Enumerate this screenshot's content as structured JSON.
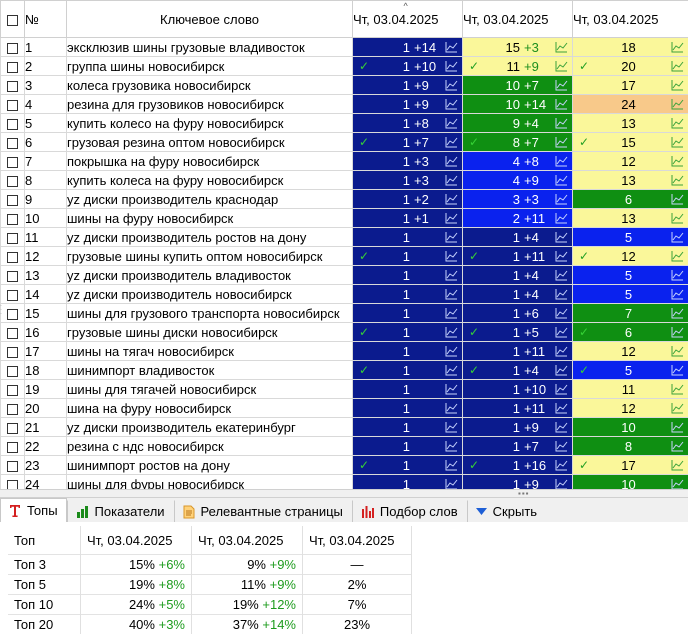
{
  "header": {
    "number_label": "№",
    "keyword_label": "Ключевое слово",
    "dates": [
      "Чт, 03.04.2025",
      "Чт, 03.04.2025",
      "Чт, 03.04.2025"
    ]
  },
  "colors": {
    "dark_blue": "#0b1b8e",
    "blue": "#0a22ee",
    "green": "#0f8f12",
    "yellow": "#faf79a",
    "orange": "#f8c98a",
    "check_on_dark": "#36d236",
    "check_on_yellow": "#24a024"
  },
  "rows": [
    {
      "n": "1",
      "kw": "эксклюзив шины грузовые владивосток",
      "c": [
        {
          "v": "1",
          "d": "+14",
          "bg": "dark_blue",
          "ok": false
        },
        {
          "v": "15",
          "d": "+3",
          "bg": "yellow",
          "ok": false
        },
        {
          "v": "18",
          "d": "",
          "bg": "yellow",
          "ok": false
        }
      ]
    },
    {
      "n": "2",
      "kw": "группа шины новосибирск",
      "c": [
        {
          "v": "1",
          "d": "+10",
          "bg": "dark_blue",
          "ok": true
        },
        {
          "v": "11",
          "d": "+9",
          "bg": "yellow",
          "ok": true
        },
        {
          "v": "20",
          "d": "",
          "bg": "yellow",
          "ok": true
        }
      ]
    },
    {
      "n": "3",
      "kw": "колеса грузовика новосибирск",
      "c": [
        {
          "v": "1",
          "d": "+9",
          "bg": "dark_blue",
          "ok": false
        },
        {
          "v": "10",
          "d": "+7",
          "bg": "green",
          "ok": false
        },
        {
          "v": "17",
          "d": "",
          "bg": "yellow",
          "ok": false
        }
      ]
    },
    {
      "n": "4",
      "kw": "резина для грузовиков новосибирск",
      "c": [
        {
          "v": "1",
          "d": "+9",
          "bg": "dark_blue",
          "ok": false
        },
        {
          "v": "10",
          "d": "+14",
          "bg": "green",
          "ok": false
        },
        {
          "v": "24",
          "d": "",
          "bg": "orange",
          "ok": false
        }
      ]
    },
    {
      "n": "5",
      "kw": "купить колесо на фуру новосибирск",
      "c": [
        {
          "v": "1",
          "d": "+8",
          "bg": "dark_blue",
          "ok": false
        },
        {
          "v": "9",
          "d": "+4",
          "bg": "green",
          "ok": false
        },
        {
          "v": "13",
          "d": "",
          "bg": "yellow",
          "ok": false
        }
      ]
    },
    {
      "n": "6",
      "kw": "грузовая резина оптом новосибирск",
      "c": [
        {
          "v": "1",
          "d": "+7",
          "bg": "dark_blue",
          "ok": true
        },
        {
          "v": "8",
          "d": "+7",
          "bg": "green",
          "ok": true
        },
        {
          "v": "15",
          "d": "",
          "bg": "yellow",
          "ok": true
        }
      ]
    },
    {
      "n": "7",
      "kw": "покрышка на фуру новосибирск",
      "c": [
        {
          "v": "1",
          "d": "+3",
          "bg": "dark_blue",
          "ok": false
        },
        {
          "v": "4",
          "d": "+8",
          "bg": "blue",
          "ok": false
        },
        {
          "v": "12",
          "d": "",
          "bg": "yellow",
          "ok": false
        }
      ]
    },
    {
      "n": "8",
      "kw": "купить колеса на фуру новосибирск",
      "c": [
        {
          "v": "1",
          "d": "+3",
          "bg": "dark_blue",
          "ok": false
        },
        {
          "v": "4",
          "d": "+9",
          "bg": "blue",
          "ok": false
        },
        {
          "v": "13",
          "d": "",
          "bg": "yellow",
          "ok": false
        }
      ]
    },
    {
      "n": "9",
      "kw": "yz диски производитель краснодар",
      "c": [
        {
          "v": "1",
          "d": "+2",
          "bg": "dark_blue",
          "ok": false
        },
        {
          "v": "3",
          "d": "+3",
          "bg": "blue",
          "ok": false
        },
        {
          "v": "6",
          "d": "",
          "bg": "green",
          "ok": false
        }
      ]
    },
    {
      "n": "10",
      "kw": "шины на фуру новосибирск",
      "c": [
        {
          "v": "1",
          "d": "+1",
          "bg": "dark_blue",
          "ok": false
        },
        {
          "v": "2",
          "d": "+11",
          "bg": "blue",
          "ok": false
        },
        {
          "v": "13",
          "d": "",
          "bg": "yellow",
          "ok": false
        }
      ]
    },
    {
      "n": "11",
      "kw": "yz диски производитель ростов на дону",
      "c": [
        {
          "v": "1",
          "d": "",
          "bg": "dark_blue",
          "ok": false
        },
        {
          "v": "1",
          "d": "+4",
          "bg": "dark_blue",
          "ok": false
        },
        {
          "v": "5",
          "d": "",
          "bg": "blue",
          "ok": false
        }
      ]
    },
    {
      "n": "12",
      "kw": "грузовые шины купить оптом новосибирск",
      "c": [
        {
          "v": "1",
          "d": "",
          "bg": "dark_blue",
          "ok": true
        },
        {
          "v": "1",
          "d": "+11",
          "bg": "dark_blue",
          "ok": true
        },
        {
          "v": "12",
          "d": "",
          "bg": "yellow",
          "ok": true
        }
      ]
    },
    {
      "n": "13",
      "kw": "yz диски производитель владивосток",
      "c": [
        {
          "v": "1",
          "d": "",
          "bg": "dark_blue",
          "ok": false
        },
        {
          "v": "1",
          "d": "+4",
          "bg": "dark_blue",
          "ok": false
        },
        {
          "v": "5",
          "d": "",
          "bg": "blue",
          "ok": false
        }
      ]
    },
    {
      "n": "14",
      "kw": "yz диски производитель новосибирск",
      "c": [
        {
          "v": "1",
          "d": "",
          "bg": "dark_blue",
          "ok": false
        },
        {
          "v": "1",
          "d": "+4",
          "bg": "dark_blue",
          "ok": false
        },
        {
          "v": "5",
          "d": "",
          "bg": "blue",
          "ok": false
        }
      ]
    },
    {
      "n": "15",
      "kw": "шины для грузового транспорта новосибирск",
      "c": [
        {
          "v": "1",
          "d": "",
          "bg": "dark_blue",
          "ok": false
        },
        {
          "v": "1",
          "d": "+6",
          "bg": "dark_blue",
          "ok": false
        },
        {
          "v": "7",
          "d": "",
          "bg": "green",
          "ok": false
        }
      ]
    },
    {
      "n": "16",
      "kw": "грузовые шины диски новосибирск",
      "c": [
        {
          "v": "1",
          "d": "",
          "bg": "dark_blue",
          "ok": true
        },
        {
          "v": "1",
          "d": "+5",
          "bg": "dark_blue",
          "ok": true
        },
        {
          "v": "6",
          "d": "",
          "bg": "green",
          "ok": true
        }
      ]
    },
    {
      "n": "17",
      "kw": "шины на тягач новосибирск",
      "c": [
        {
          "v": "1",
          "d": "",
          "bg": "dark_blue",
          "ok": false
        },
        {
          "v": "1",
          "d": "+11",
          "bg": "dark_blue",
          "ok": false
        },
        {
          "v": "12",
          "d": "",
          "bg": "yellow",
          "ok": false
        }
      ]
    },
    {
      "n": "18",
      "kw": "шинимпорт владивосток",
      "c": [
        {
          "v": "1",
          "d": "",
          "bg": "dark_blue",
          "ok": true
        },
        {
          "v": "1",
          "d": "+4",
          "bg": "dark_blue",
          "ok": true
        },
        {
          "v": "5",
          "d": "",
          "bg": "blue",
          "ok": true
        }
      ]
    },
    {
      "n": "19",
      "kw": "шины для тягачей новосибирск",
      "c": [
        {
          "v": "1",
          "d": "",
          "bg": "dark_blue",
          "ok": false
        },
        {
          "v": "1",
          "d": "+10",
          "bg": "dark_blue",
          "ok": false
        },
        {
          "v": "11",
          "d": "",
          "bg": "yellow",
          "ok": false
        }
      ]
    },
    {
      "n": "20",
      "kw": "шина на фуру новосибирск",
      "c": [
        {
          "v": "1",
          "d": "",
          "bg": "dark_blue",
          "ok": false
        },
        {
          "v": "1",
          "d": "+11",
          "bg": "dark_blue",
          "ok": false
        },
        {
          "v": "12",
          "d": "",
          "bg": "yellow",
          "ok": false
        }
      ]
    },
    {
      "n": "21",
      "kw": "yz диски производитель екатеринбург",
      "c": [
        {
          "v": "1",
          "d": "",
          "bg": "dark_blue",
          "ok": false
        },
        {
          "v": "1",
          "d": "+9",
          "bg": "dark_blue",
          "ok": false
        },
        {
          "v": "10",
          "d": "",
          "bg": "green",
          "ok": false
        }
      ]
    },
    {
      "n": "22",
      "kw": "резина с ндс новосибирск",
      "c": [
        {
          "v": "1",
          "d": "",
          "bg": "dark_blue",
          "ok": false
        },
        {
          "v": "1",
          "d": "+7",
          "bg": "dark_blue",
          "ok": false
        },
        {
          "v": "8",
          "d": "",
          "bg": "green",
          "ok": false
        }
      ]
    },
    {
      "n": "23",
      "kw": "шинимпорт ростов на дону",
      "c": [
        {
          "v": "1",
          "d": "",
          "bg": "dark_blue",
          "ok": true
        },
        {
          "v": "1",
          "d": "+16",
          "bg": "dark_blue",
          "ok": true
        },
        {
          "v": "17",
          "d": "",
          "bg": "yellow",
          "ok": true
        }
      ]
    },
    {
      "n": "24",
      "kw": "шины для фуры новосибирск",
      "c": [
        {
          "v": "1",
          "d": "",
          "bg": "dark_blue",
          "ok": false
        },
        {
          "v": "1",
          "d": "+9",
          "bg": "dark_blue",
          "ok": false
        },
        {
          "v": "10",
          "d": "",
          "bg": "green",
          "ok": false
        }
      ]
    }
  ],
  "tabs": [
    {
      "label": "Топы",
      "icon": "t-letter-icon",
      "active": true
    },
    {
      "label": "Показатели",
      "icon": "bar-chart-icon",
      "active": false
    },
    {
      "label": "Релевантные страницы",
      "icon": "document-icon",
      "active": false
    },
    {
      "label": "Подбор слов",
      "icon": "red-bars-icon",
      "active": false
    },
    {
      "label": "Скрыть",
      "icon": "triangle-down-icon",
      "active": false
    }
  ],
  "tops": {
    "label_header": "Топ",
    "dates": [
      "Чт, 03.04.2025",
      "Чт, 03.04.2025",
      "Чт, 03.04.2025"
    ],
    "rows": [
      {
        "label": "Топ 3",
        "c1": "15%",
        "d1": "+6%",
        "c2": "9%",
        "d2": "+9%",
        "c3": "—"
      },
      {
        "label": "Топ 5",
        "c1": "19%",
        "d1": "+8%",
        "c2": "11%",
        "d2": "+9%",
        "c3": "2%"
      },
      {
        "label": "Топ 10",
        "c1": "24%",
        "d1": "+5%",
        "c2": "19%",
        "d2": "+12%",
        "c3": "7%"
      },
      {
        "label": "Топ 20",
        "c1": "40%",
        "d1": "+3%",
        "c2": "37%",
        "d2": "+14%",
        "c3": "23%"
      }
    ]
  }
}
